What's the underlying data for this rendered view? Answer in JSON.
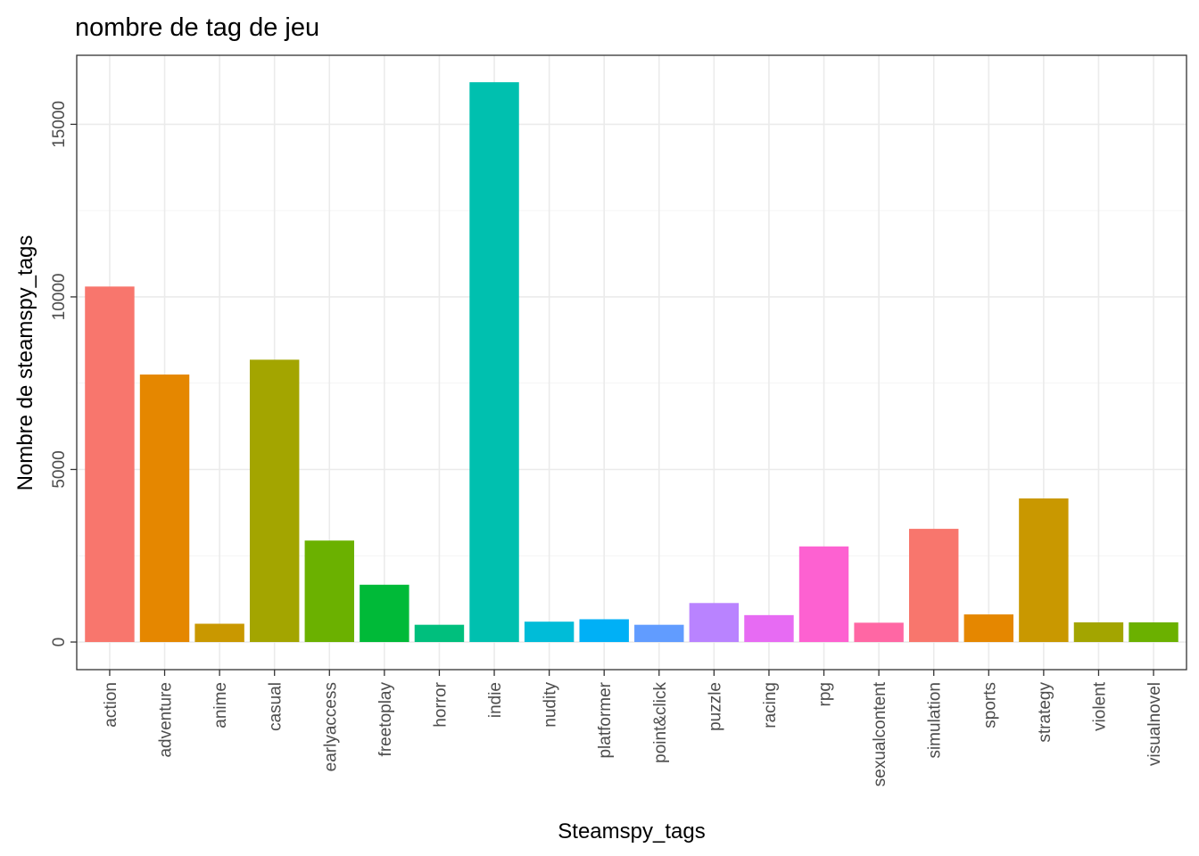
{
  "chart_data": {
    "type": "bar",
    "title": "nombre de tag de jeu",
    "xlabel": "Steamspy_tags",
    "ylabel": "Nombre de steamspy_tags",
    "categories": [
      "action",
      "adventure",
      "anime",
      "casual",
      "earlyaccess",
      "freetoplay",
      "horror",
      "indie",
      "nudity",
      "platformer",
      "point&click",
      "puzzle",
      "racing",
      "rpg",
      "sexualcontent",
      "simulation",
      "sports",
      "strategy",
      "violent",
      "visualnovel"
    ],
    "values": [
      10300,
      7750,
      530,
      8180,
      2940,
      1660,
      500,
      16220,
      590,
      660,
      500,
      1130,
      780,
      2770,
      560,
      3280,
      800,
      4160,
      570,
      570
    ],
    "colors": [
      "#F8766D",
      "#E58700",
      "#C99800",
      "#A3A500",
      "#6BB100",
      "#00BA38",
      "#00BF7D",
      "#00C0AF",
      "#00BCD8",
      "#00B0F6",
      "#619CFF",
      "#B983FF",
      "#E76BF3",
      "#FD61D1",
      "#FF67A4",
      "#F8766D",
      "#E58700",
      "#C99800",
      "#A3A500",
      "#6BB100"
    ],
    "ylim": [
      -800,
      17000
    ],
    "yticks": [
      0,
      5000,
      10000,
      15000
    ],
    "ytick_labels": [
      "0",
      "5000",
      "10000",
      "15000"
    ],
    "grid": true,
    "legend": "none"
  }
}
